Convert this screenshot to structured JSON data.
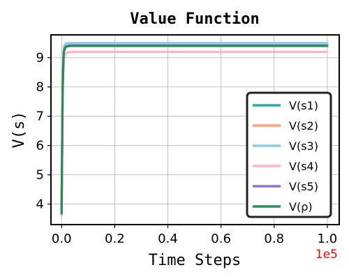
{
  "chart_data": {
    "type": "line",
    "title": "Value Function",
    "xlabel": "Time Steps",
    "ylabel": "V(s)",
    "x_offset_label": "1e5",
    "x_offset_color": "#ff0000",
    "xlim": [
      -0.04,
      1.045
    ],
    "ylim": [
      3.3,
      9.78
    ],
    "xticks": [
      0.0,
      0.2,
      0.4,
      0.6,
      0.8,
      1.0
    ],
    "xtick_labels": [
      "0.0",
      "0.2",
      "0.4",
      "0.6",
      "0.8",
      "1.0"
    ],
    "yticks": [
      4,
      5,
      6,
      7,
      8,
      9
    ],
    "ytick_labels": [
      "4",
      "5",
      "6",
      "7",
      "8",
      "9"
    ],
    "grid": true,
    "legend_position": "lower-right",
    "series": [
      {
        "name": "V(s1)",
        "color": "#20b2aa",
        "x": [
          0.0,
          0.004,
          0.008,
          0.015,
          0.03,
          1.0
        ],
        "y": [
          3.7,
          8.0,
          9.2,
          9.38,
          9.42,
          9.42
        ]
      },
      {
        "name": "V(s2)",
        "color": "#ffa07a",
        "x": [
          0.0,
          0.004,
          0.008,
          0.015,
          0.03,
          1.0
        ],
        "y": [
          3.7,
          8.0,
          9.2,
          9.38,
          9.42,
          9.42
        ]
      },
      {
        "name": "V(s3)",
        "color": "#87ceeb",
        "x": [
          0.0,
          0.004,
          0.008,
          0.015,
          0.03,
          1.0
        ],
        "y": [
          3.72,
          8.2,
          9.35,
          9.48,
          9.5,
          9.5
        ]
      },
      {
        "name": "V(s4)",
        "color": "#ffb6c1",
        "x": [
          0.0,
          0.004,
          0.008,
          0.015,
          0.03,
          1.0
        ],
        "y": [
          3.6,
          7.6,
          8.95,
          9.15,
          9.2,
          9.2
        ]
      },
      {
        "name": "V(s5)",
        "color": "#9370db",
        "x": [
          0.0,
          0.004,
          0.008,
          0.015,
          0.03,
          1.0
        ],
        "y": [
          3.7,
          8.0,
          9.2,
          9.38,
          9.42,
          9.42
        ]
      },
      {
        "name": "V(ρ)",
        "color": "#2e8b57",
        "x": [
          0.0,
          0.004,
          0.008,
          0.015,
          0.03,
          1.0
        ],
        "y": [
          3.68,
          7.95,
          9.18,
          9.37,
          9.4,
          9.4
        ]
      }
    ]
  }
}
